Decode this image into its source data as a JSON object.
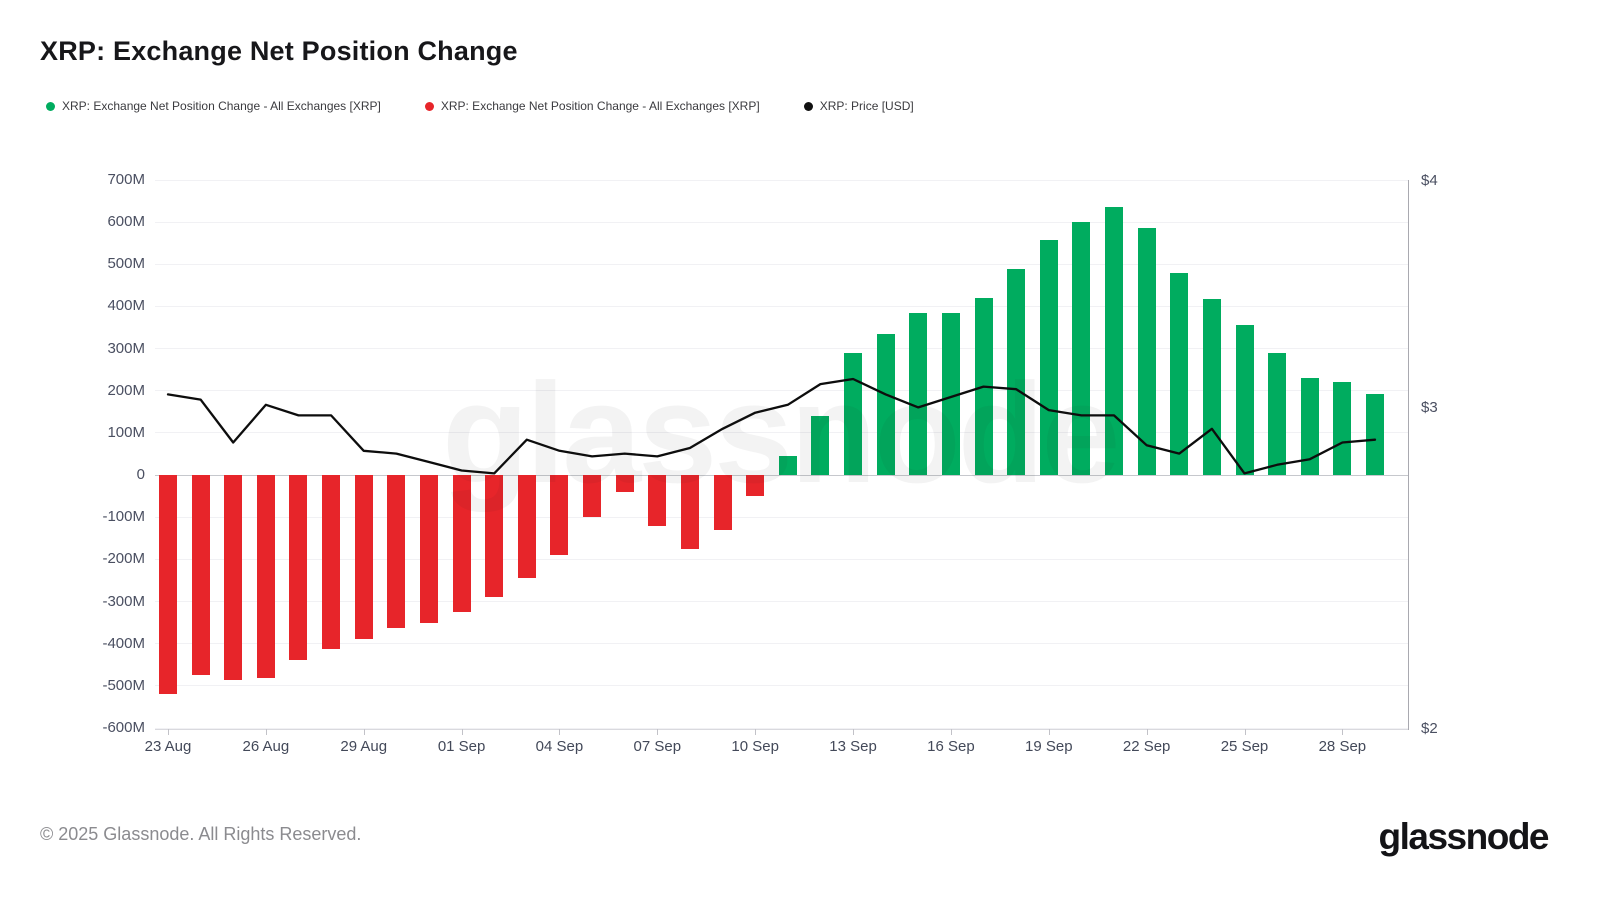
{
  "header": {
    "title": "XRP: Exchange Net Position Change"
  },
  "legend": [
    {
      "label": "XRP: Exchange Net Position Change - All Exchanges [XRP]",
      "color": "#00ac5f"
    },
    {
      "label": "XRP: Exchange Net Position Change - All Exchanges [XRP]",
      "color": "#e7252a"
    },
    {
      "label": "XRP: Price [USD]",
      "color": "#111111"
    }
  ],
  "watermark": {
    "text": "glassnode"
  },
  "footer": {
    "copyright": "© 2025 Glassnode. All Rights Reserved.",
    "logo_text": "glassnode"
  },
  "colors": {
    "positive_bar": "#00ac5f",
    "negative_bar": "#e7252a",
    "price_line": "#0d0d0d",
    "gridline": "#f1f1f4",
    "zero_line": "#c6c8cd"
  },
  "chart_data": {
    "type": "combo",
    "title": "XRP: Exchange Net Position Change",
    "categories": [
      "23 Aug",
      "24 Aug",
      "25 Aug",
      "26 Aug",
      "27 Aug",
      "28 Aug",
      "29 Aug",
      "30 Aug",
      "31 Aug",
      "01 Sep",
      "02 Sep",
      "03 Sep",
      "04 Sep",
      "05 Sep",
      "06 Sep",
      "07 Sep",
      "08 Sep",
      "09 Sep",
      "10 Sep",
      "11 Sep",
      "12 Sep",
      "13 Sep",
      "14 Sep",
      "15 Sep",
      "16 Sep",
      "17 Sep",
      "18 Sep",
      "19 Sep",
      "20 Sep",
      "21 Sep",
      "22 Sep",
      "23 Sep",
      "24 Sep",
      "25 Sep",
      "26 Sep",
      "27 Sep",
      "28 Sep",
      "29 Sep"
    ],
    "series": [
      {
        "name": "XRP: Exchange Net Position Change - All Exchanges [XRP]",
        "type": "bar",
        "unit": "XRP (millions)",
        "values": [
          -520,
          -475,
          -487,
          -482,
          -438,
          -412,
          -390,
          -362,
          -350,
          -325,
          -290,
          -245,
          -190,
          -100,
          -40,
          -120,
          -175,
          -130,
          -50,
          45,
          140,
          290,
          335,
          385,
          385,
          420,
          490,
          557,
          600,
          635,
          587,
          480,
          417,
          355,
          290,
          230,
          220,
          192
        ]
      },
      {
        "name": "XRP: Price [USD]",
        "type": "line",
        "unit": "USD",
        "values": [
          3.05,
          3.03,
          2.87,
          3.01,
          2.97,
          2.97,
          2.84,
          2.83,
          2.8,
          2.77,
          2.76,
          2.88,
          2.84,
          2.82,
          2.83,
          2.82,
          2.85,
          2.92,
          2.98,
          3.01,
          3.09,
          3.11,
          3.05,
          3.0,
          3.04,
          3.08,
          3.07,
          2.99,
          2.97,
          2.97,
          2.86,
          2.83,
          2.92,
          2.76,
          2.79,
          2.81,
          2.87,
          2.88
        ]
      }
    ],
    "left_axis": {
      "unit": "M",
      "min": -600,
      "max": 700,
      "step": 100,
      "tick_labels": [
        "700M",
        "600M",
        "500M",
        "400M",
        "300M",
        "200M",
        "100M",
        "0",
        "-100M",
        "-200M",
        "-300M",
        "-400M",
        "-500M",
        "-600M"
      ]
    },
    "right_axis": {
      "unit": "$",
      "min": 2,
      "max": 4,
      "scale": "log",
      "tick_labels": [
        "$4",
        "$3",
        "$2"
      ],
      "tick_values": [
        4,
        3,
        2
      ]
    },
    "x_axis": {
      "tick_every_days": 3,
      "tick_labels": [
        "23 Aug",
        "26 Aug",
        "29 Aug",
        "01 Sep",
        "04 Sep",
        "07 Sep",
        "10 Sep",
        "13 Sep",
        "16 Sep",
        "19 Sep",
        "22 Sep",
        "25 Sep",
        "28 Sep"
      ]
    },
    "grid": "horizontal-only",
    "legend_position": "top-left"
  }
}
